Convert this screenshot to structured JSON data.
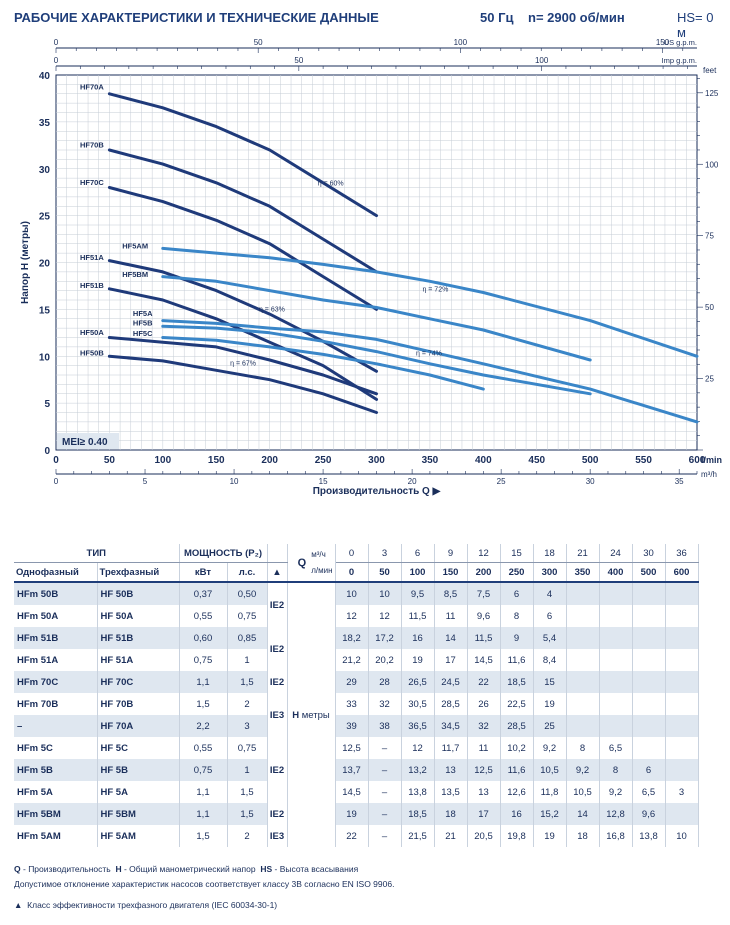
{
  "header": {
    "title": "РАБОЧИЕ ХАРАКТЕРИСТИКИ И ТЕХНИЧЕСКИЕ ДАННЫЕ",
    "freq": "50 Гц",
    "rpm": "n= 2900 об/мин",
    "hs": "HS= 0 м"
  },
  "chart_data": {
    "type": "line",
    "xlabel": "Производительность Q",
    "ylabel": "Напор H (метры)",
    "xunit": "l/min",
    "x2unit": "m³/h",
    "us_label": "US g.p.m.",
    "imp_label": "Imp g.p.m.",
    "feet_label": "feet",
    "mei_label": "MEI≥ 0.40",
    "xlim": [
      0,
      600
    ],
    "ylim": [
      0,
      40
    ],
    "grid": true,
    "x_ticks": [
      "0",
      "50",
      "100",
      "150",
      "200",
      "250",
      "300",
      "350",
      "400",
      "450",
      "500",
      "550",
      "600"
    ],
    "y_ticks": [
      "0",
      "5",
      "10",
      "15",
      "20",
      "25",
      "30",
      "35",
      "40"
    ],
    "m3h_ticks": [
      {
        "v": 0,
        "label": "0"
      },
      {
        "v": 5,
        "label": "5"
      },
      {
        "v": 10,
        "label": "10"
      },
      {
        "v": 15,
        "label": "15"
      },
      {
        "v": 20,
        "label": "20"
      },
      {
        "v": 25,
        "label": "25"
      },
      {
        "v": 30,
        "label": "30"
      },
      {
        "v": 35,
        "label": "35"
      }
    ],
    "usgpm_ticks": [
      {
        "v": 0,
        "label": "0"
      },
      {
        "v": 50,
        "label": "50"
      },
      {
        "v": 100,
        "label": "100"
      },
      {
        "v": 150,
        "label": "150"
      }
    ],
    "impgpm_ticks": [
      {
        "v": 0,
        "label": "0"
      },
      {
        "v": 50,
        "label": "50"
      },
      {
        "v": 100,
        "label": "100"
      }
    ],
    "feet_ticks": [
      {
        "v": 25,
        "label": "25"
      },
      {
        "v": 50,
        "label": "50"
      },
      {
        "v": 75,
        "label": "75"
      },
      {
        "v": 100,
        "label": "100"
      },
      {
        "v": 125,
        "label": "125"
      }
    ],
    "series": [
      {
        "name": "HF70A",
        "color": "#1f3a7a",
        "x": [
          50,
          100,
          150,
          200,
          250,
          300
        ],
        "y": [
          38,
          36.5,
          34.5,
          32,
          28.5,
          25
        ]
      },
      {
        "name": "HF70B",
        "color": "#1f3a7a",
        "x": [
          50,
          100,
          150,
          200,
          250,
          300
        ],
        "y": [
          32,
          30.5,
          28.5,
          26,
          22.5,
          19
        ]
      },
      {
        "name": "HF70C",
        "color": "#1f3a7a",
        "x": [
          50,
          100,
          150,
          200,
          250,
          300
        ],
        "y": [
          28,
          26.5,
          24.5,
          22,
          18.5,
          15
        ]
      },
      {
        "name": "HF51A",
        "color": "#1f3a7a",
        "x": [
          50,
          100,
          150,
          200,
          250,
          300
        ],
        "y": [
          20.2,
          19,
          17,
          14.5,
          11.6,
          8.4
        ]
      },
      {
        "name": "HF51B",
        "color": "#1f3a7a",
        "x": [
          50,
          100,
          150,
          200,
          250,
          300
        ],
        "y": [
          17.2,
          16,
          14,
          11.5,
          9,
          5.4
        ]
      },
      {
        "name": "HF50A",
        "color": "#1f3a7a",
        "x": [
          50,
          100,
          150,
          200,
          250,
          300
        ],
        "y": [
          12,
          11.5,
          11,
          9.6,
          8,
          6
        ]
      },
      {
        "name": "HF50B",
        "color": "#1f3a7a",
        "x": [
          50,
          100,
          150,
          200,
          250,
          300
        ],
        "y": [
          10,
          9.5,
          8.5,
          7.5,
          6,
          4
        ]
      },
      {
        "name": "HF5AM",
        "color": "#3a86c8",
        "x": [
          100,
          150,
          200,
          250,
          300,
          350,
          400,
          500,
          600
        ],
        "y": [
          21.5,
          21,
          20.5,
          19.8,
          19,
          18,
          16.8,
          13.8,
          10
        ]
      },
      {
        "name": "HF5BM",
        "color": "#3a86c8",
        "x": [
          100,
          150,
          200,
          250,
          300,
          350,
          400,
          500
        ],
        "y": [
          18.5,
          18,
          17,
          16,
          15.2,
          14,
          12.8,
          9.6
        ]
      },
      {
        "name": "HF5A",
        "color": "#3a86c8",
        "x": [
          100,
          150,
          200,
          250,
          300,
          350,
          400,
          500,
          600
        ],
        "y": [
          13.8,
          13.5,
          13,
          12.6,
          11.8,
          10.5,
          9.2,
          6.5,
          3
        ]
      },
      {
        "name": "HF5B",
        "color": "#3a86c8",
        "x": [
          100,
          150,
          200,
          250,
          300,
          350,
          400,
          500
        ],
        "y": [
          13.2,
          13,
          12.5,
          11.6,
          10.5,
          9.2,
          8,
          6
        ]
      },
      {
        "name": "HF5C",
        "color": "#3a86c8",
        "x": [
          100,
          150,
          200,
          250,
          300,
          350,
          400
        ],
        "y": [
          12,
          11.7,
          11,
          10.2,
          9.2,
          8,
          6.5
        ]
      }
    ],
    "curve_labels": [
      {
        "text": "HF70A",
        "x": -4,
        "y": 38.8
      },
      {
        "text": "HF70B",
        "x": -4,
        "y": 32.6
      },
      {
        "text": "HF70C",
        "x": -4,
        "y": 28.6
      },
      {
        "text": "HF51A",
        "x": -4,
        "y": 20.6
      },
      {
        "text": "HF51B",
        "x": -4,
        "y": 17.6
      },
      {
        "text": "HF50A",
        "x": -4,
        "y": 12.6
      },
      {
        "text": "HF50B",
        "x": -4,
        "y": 10.4
      },
      {
        "text": "HF5AM",
        "x": 62,
        "y": 21.8
      },
      {
        "text": "HF5BM",
        "x": 62,
        "y": 18.8
      },
      {
        "text": "HF5A",
        "x": 72,
        "y": 14.6
      },
      {
        "text": "HF5B",
        "x": 72,
        "y": 13.6
      },
      {
        "text": "HF5C",
        "x": 72,
        "y": 12.5
      }
    ],
    "annotations": [
      {
        "text": "η = 60%",
        "x": 245,
        "y": 28.2
      },
      {
        "text": "η = 63%",
        "x": 190,
        "y": 14.8
      },
      {
        "text": "η = 67%",
        "x": 163,
        "y": 9.0
      },
      {
        "text": "η = 72%",
        "x": 343,
        "y": 16.9
      },
      {
        "text": "η = 74%",
        "x": 337,
        "y": 10.1
      }
    ]
  },
  "table": {
    "h_type": "ТИП",
    "h_power": "МОЩНОСТЬ (P₂)",
    "h_m3h": "м³/ч",
    "h_lmin": "л/мин",
    "h_single": "Однофазный",
    "h_three": "Трехфазный",
    "h_kw": "кВт",
    "h_hp": "л.с.",
    "h_tri": "▲",
    "h_q": "Q",
    "h_h": "H",
    "h_m": "метры",
    "m3h": [
      "0",
      "3",
      "6",
      "9",
      "12",
      "15",
      "18",
      "21",
      "24",
      "30",
      "36"
    ],
    "lmin": [
      "0",
      "50",
      "100",
      "150",
      "200",
      "250",
      "300",
      "350",
      "400",
      "500",
      "600"
    ],
    "rows": [
      {
        "s": "HFm 50B",
        "t": "HF 50B",
        "kw": "0,37",
        "hp": "0,50",
        "ie": "IE2",
        "v": [
          "10",
          "10",
          "9,5",
          "8,5",
          "7,5",
          "6",
          "4",
          "",
          "",
          "",
          ""
        ]
      },
      {
        "s": "HFm 50A",
        "t": "HF 50A",
        "kw": "0,55",
        "hp": "0,75",
        "ie": "",
        "v": [
          "12",
          "12",
          "11,5",
          "11",
          "9,6",
          "8",
          "6",
          "",
          "",
          "",
          ""
        ]
      },
      {
        "s": "HFm 51B",
        "t": "HF 51B",
        "kw": "0,60",
        "hp": "0,85",
        "ie": "IE2",
        "v": [
          "18,2",
          "17,2",
          "16",
          "14",
          "11,5",
          "9",
          "5,4",
          "",
          "",
          "",
          ""
        ]
      },
      {
        "s": "HFm 51A",
        "t": "HF 51A",
        "kw": "0,75",
        "hp": "1",
        "ie": "",
        "v": [
          "21,2",
          "20,2",
          "19",
          "17",
          "14,5",
          "11,6",
          "8,4",
          "",
          "",
          "",
          ""
        ]
      },
      {
        "s": "HFm 70C",
        "t": "HF 70C",
        "kw": "1,1",
        "hp": "1,5",
        "ie": "IE2",
        "v": [
          "29",
          "28",
          "26,5",
          "24,5",
          "22",
          "18,5",
          "15",
          "",
          "",
          "",
          ""
        ]
      },
      {
        "s": "HFm 70B",
        "t": "HF 70B",
        "kw": "1,5",
        "hp": "2",
        "ie": "IE3",
        "v": [
          "33",
          "32",
          "30,5",
          "28,5",
          "26",
          "22,5",
          "19",
          "",
          "",
          "",
          ""
        ]
      },
      {
        "s": "–",
        "t": "HF 70A",
        "kw": "2,2",
        "hp": "3",
        "ie": "",
        "v": [
          "39",
          "38",
          "36,5",
          "34,5",
          "32",
          "28,5",
          "25",
          "",
          "",
          "",
          ""
        ]
      },
      {
        "s": "HFm 5C",
        "t": "HF 5C",
        "kw": "0,55",
        "hp": "0,75",
        "ie": "IE2",
        "v": [
          "12,5",
          "–",
          "12",
          "11,7",
          "11",
          "10,2",
          "9,2",
          "8",
          "6,5",
          "",
          ""
        ]
      },
      {
        "s": "HFm 5B",
        "t": "HF 5B",
        "kw": "0,75",
        "hp": "1",
        "ie": "",
        "v": [
          "13,7",
          "–",
          "13,2",
          "13",
          "12,5",
          "11,6",
          "10,5",
          "9,2",
          "8",
          "6",
          ""
        ]
      },
      {
        "s": "HFm 5A",
        "t": "HF 5A",
        "kw": "1,1",
        "hp": "1,5",
        "ie": "",
        "v": [
          "14,5",
          "–",
          "13,8",
          "13,5",
          "13",
          "12,6",
          "11,8",
          "10,5",
          "9,2",
          "6,5",
          "3"
        ]
      },
      {
        "s": "HFm 5BM",
        "t": "HF 5BM",
        "kw": "1,1",
        "hp": "1,5",
        "ie": "IE2",
        "v": [
          "19",
          "–",
          "18,5",
          "18",
          "17",
          "16",
          "15,2",
          "14",
          "12,8",
          "9,6",
          ""
        ]
      },
      {
        "s": "HFm 5AM",
        "t": "HF 5AM",
        "kw": "1,5",
        "hp": "2",
        "ie": "IE3",
        "v": [
          "22",
          "–",
          "21,5",
          "21",
          "20,5",
          "19,8",
          "19",
          "18",
          "16,8",
          "13,8",
          "10"
        ]
      }
    ]
  },
  "footer": {
    "legend_q": "Q",
    "legend_q_text": "- Производительность",
    "legend_h": "H",
    "legend_h_text": "- Общий манометрический напор",
    "legend_hs": "HS",
    "legend_hs_text": "- Высота всасывания",
    "note": "Допустимое отклонение характеристик насосов соответствует классу 3B согласно EN ISO 9906.",
    "tri_note": "Класс эффективности трехфазного двигателя (IEC 60034-30-1)"
  }
}
